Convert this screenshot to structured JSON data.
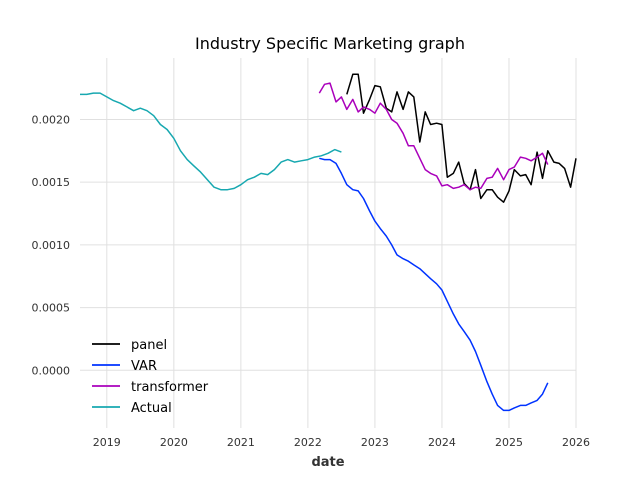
{
  "chart_data": {
    "type": "line",
    "title": "Industry Specific Marketing graph",
    "xlabel": "date",
    "ylabel": "",
    "xlim": [
      2018.6,
      2026.0
    ],
    "ylim": [
      -0.00046,
      0.00249
    ],
    "x_ticks": [
      {
        "value": 2019,
        "label": "2019"
      },
      {
        "value": 2020,
        "label": "2020"
      },
      {
        "value": 2021,
        "label": "2021"
      },
      {
        "value": 2022,
        "label": "2022"
      },
      {
        "value": 2023,
        "label": "2023"
      },
      {
        "value": 2024,
        "label": "2024"
      },
      {
        "value": 2025,
        "label": "2025"
      },
      {
        "value": 2026,
        "label": "2026"
      }
    ],
    "y_ticks": [
      {
        "value": 0.0,
        "label": "0.0000"
      },
      {
        "value": 0.0005,
        "label": "0.0005"
      },
      {
        "value": 0.001,
        "label": "0.0010"
      },
      {
        "value": 0.0015,
        "label": "0.0015"
      },
      {
        "value": 0.002,
        "label": "0.0020"
      }
    ],
    "grid": true,
    "legend_position": "lower-left",
    "series": [
      {
        "name": "panel",
        "color": "#000000",
        "x": [
          2022.58,
          2022.67,
          2022.75,
          2022.83,
          2022.92,
          2023.0,
          2023.08,
          2023.17,
          2023.25,
          2023.33,
          2023.42,
          2023.5,
          2023.58,
          2023.67,
          2023.75,
          2023.83,
          2023.92,
          2024.0,
          2024.08,
          2024.17,
          2024.25,
          2024.33,
          2024.42,
          2024.5,
          2024.58,
          2024.67,
          2024.75,
          2024.83,
          2024.92,
          2025.0,
          2025.08,
          2025.17,
          2025.25,
          2025.33,
          2025.42,
          2025.5,
          2025.58,
          2025.67,
          2025.75,
          2025.83,
          2025.92,
          2026.0
        ],
        "y": [
          0.0022,
          0.00236,
          0.00236,
          0.00205,
          0.00216,
          0.00227,
          0.00226,
          0.00209,
          0.00206,
          0.00222,
          0.00208,
          0.00222,
          0.00218,
          0.00182,
          0.00206,
          0.00196,
          0.00197,
          0.00196,
          0.00154,
          0.00157,
          0.00166,
          0.00149,
          0.00144,
          0.0016,
          0.00137,
          0.00144,
          0.00144,
          0.00138,
          0.00134,
          0.00143,
          0.0016,
          0.00155,
          0.00156,
          0.00148,
          0.00174,
          0.00153,
          0.00175,
          0.00166,
          0.00165,
          0.00161,
          0.00146,
          0.00169
        ]
      },
      {
        "name": "VAR",
        "color": "#0033ff",
        "x": [
          2022.17,
          2022.25,
          2022.33,
          2022.42,
          2022.5,
          2022.58,
          2022.67,
          2022.75,
          2022.83,
          2022.92,
          2023.0,
          2023.08,
          2023.17,
          2023.25,
          2023.33,
          2023.42,
          2023.5,
          2023.58,
          2023.67,
          2023.75,
          2023.83,
          2023.92,
          2024.0,
          2024.08,
          2024.17,
          2024.25,
          2024.33,
          2024.42,
          2024.5,
          2024.58,
          2024.67,
          2024.75,
          2024.83,
          2024.92,
          2025.0,
          2025.08,
          2025.17,
          2025.25,
          2025.33,
          2025.42,
          2025.5,
          2025.58
        ],
        "y": [
          0.00169,
          0.00168,
          0.00168,
          0.00165,
          0.00157,
          0.00148,
          0.00144,
          0.00143,
          0.00137,
          0.00127,
          0.00119,
          0.00113,
          0.00107,
          0.001,
          0.00092,
          0.00089,
          0.00087,
          0.00084,
          0.00081,
          0.00077,
          0.00073,
          0.00069,
          0.00064,
          0.00055,
          0.00045,
          0.00037,
          0.00031,
          0.00024,
          0.00015,
          4e-05,
          -9e-05,
          -0.00019,
          -0.00028,
          -0.00032,
          -0.00032,
          -0.0003,
          -0.00028,
          -0.00028,
          -0.00026,
          -0.00024,
          -0.00019,
          -0.0001
        ]
      },
      {
        "name": "transformer",
        "color": "#aa00bb",
        "x": [
          2022.17,
          2022.25,
          2022.33,
          2022.42,
          2022.5,
          2022.58,
          2022.67,
          2022.75,
          2022.83,
          2022.92,
          2023.0,
          2023.08,
          2023.17,
          2023.25,
          2023.33,
          2023.42,
          2023.5,
          2023.58,
          2023.67,
          2023.75,
          2023.83,
          2023.92,
          2024.0,
          2024.08,
          2024.17,
          2024.25,
          2024.33,
          2024.42,
          2024.5,
          2024.58,
          2024.67,
          2024.75,
          2024.83,
          2024.92,
          2025.0,
          2025.08,
          2025.17,
          2025.25,
          2025.33,
          2025.42,
          2025.5,
          2025.58
        ],
        "y": [
          0.00221,
          0.00228,
          0.00229,
          0.00214,
          0.00218,
          0.00208,
          0.00216,
          0.00206,
          0.0021,
          0.00208,
          0.00205,
          0.00213,
          0.00208,
          0.002,
          0.00197,
          0.00189,
          0.00179,
          0.00179,
          0.00169,
          0.0016,
          0.00157,
          0.00155,
          0.00147,
          0.00148,
          0.00145,
          0.00146,
          0.00148,
          0.00144,
          0.00146,
          0.00145,
          0.00153,
          0.00154,
          0.00161,
          0.00152,
          0.0016,
          0.00162,
          0.0017,
          0.00169,
          0.00167,
          0.0017,
          0.00173,
          0.00164
        ]
      },
      {
        "name": "Actual",
        "color": "#17a8b0",
        "x": [
          2018.6,
          2018.7,
          2018.8,
          2018.9,
          2019.0,
          2019.1,
          2019.2,
          2019.3,
          2019.4,
          2019.5,
          2019.6,
          2019.7,
          2019.8,
          2019.9,
          2020.0,
          2020.1,
          2020.2,
          2020.3,
          2020.4,
          2020.5,
          2020.6,
          2020.7,
          2020.8,
          2020.9,
          2021.0,
          2021.1,
          2021.2,
          2021.3,
          2021.4,
          2021.5,
          2021.6,
          2021.7,
          2021.8,
          2021.9,
          2022.0,
          2022.1,
          2022.2,
          2022.3,
          2022.4,
          2022.5
        ],
        "y": [
          0.0022,
          0.0022,
          0.00221,
          0.00221,
          0.00218,
          0.00215,
          0.00213,
          0.0021,
          0.00207,
          0.00209,
          0.00207,
          0.00203,
          0.00196,
          0.00192,
          0.00185,
          0.00175,
          0.00168,
          0.00163,
          0.00158,
          0.00152,
          0.00146,
          0.00144,
          0.00144,
          0.00145,
          0.00148,
          0.00152,
          0.00154,
          0.00157,
          0.00156,
          0.0016,
          0.00166,
          0.00168,
          0.00166,
          0.00167,
          0.00168,
          0.0017,
          0.00171,
          0.00173,
          0.00176,
          0.00174
        ]
      }
    ]
  }
}
